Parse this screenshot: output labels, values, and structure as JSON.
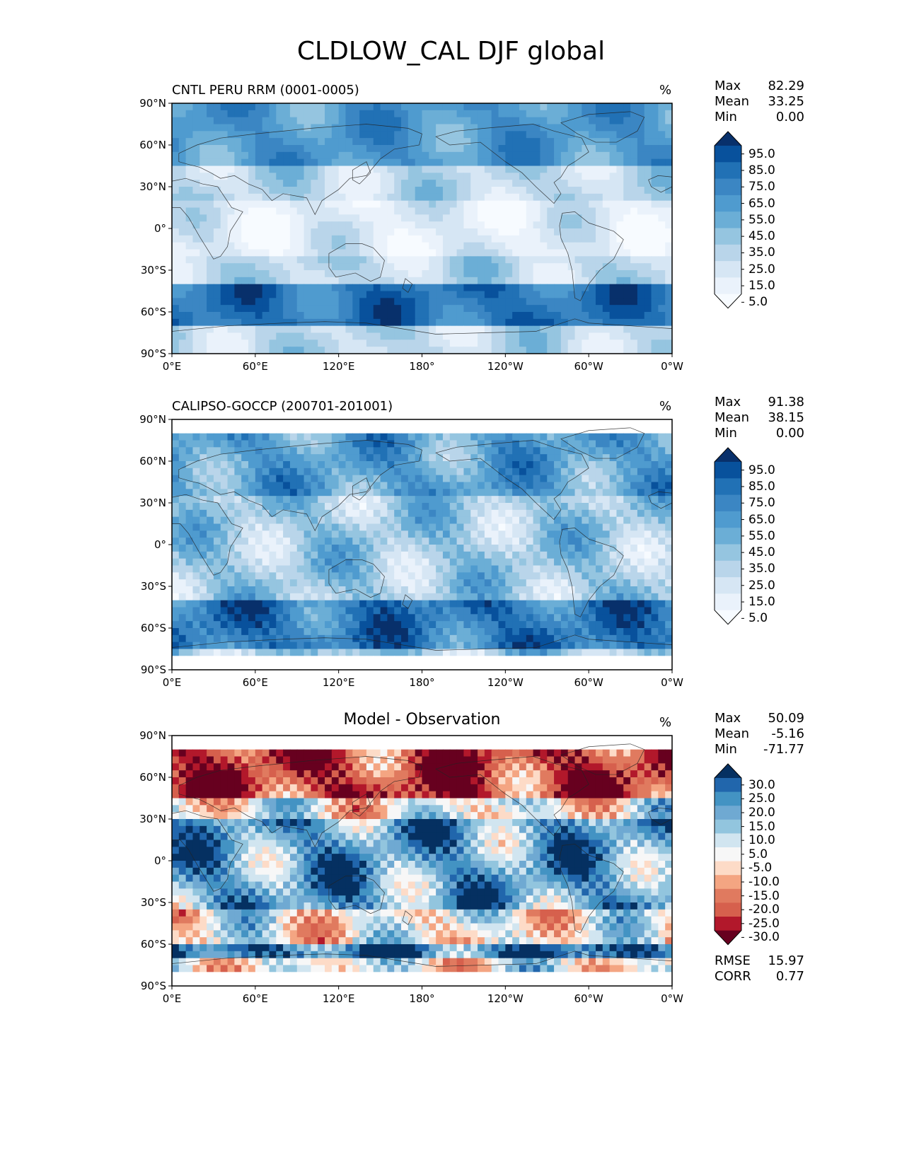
{
  "figure_title": "CLDLOW_CAL DJF global",
  "axes": {
    "lat_ticks": [
      "90°N",
      "60°N",
      "30°N",
      "0°",
      "30°S",
      "60°S",
      "90°S"
    ],
    "lon_ticks": [
      "0°E",
      "60°E",
      "120°E",
      "180°",
      "120°W",
      "60°W",
      "0°W"
    ]
  },
  "panels": [
    {
      "title": "CNTL PERU RRM (0001-0005)",
      "unit": "%",
      "stats": [
        [
          "Max",
          "82.29"
        ],
        [
          "Mean",
          "33.25"
        ],
        [
          "Min",
          "0.00"
        ]
      ],
      "colorbar": {
        "labels": [
          "95.0",
          "85.0",
          "75.0",
          "65.0",
          "55.0",
          "45.0",
          "35.0",
          "25.0",
          "15.0",
          "5.0"
        ],
        "colors": [
          "#08306b",
          "#08519c",
          "#2171b5",
          "#3b86c3",
          "#4f9bcf",
          "#6baed6",
          "#95c5e0",
          "#b9d5ea",
          "#d6e6f4",
          "#eaf2fb",
          "#f7fbff"
        ]
      },
      "extra_stats": []
    },
    {
      "title": "CALIPSO-GOCCP (200701-201001)",
      "unit": "%",
      "stats": [
        [
          "Max",
          "91.38"
        ],
        [
          "Mean",
          "38.15"
        ],
        [
          "Min",
          "0.00"
        ]
      ],
      "colorbar": {
        "labels": [
          "95.0",
          "85.0",
          "75.0",
          "65.0",
          "55.0",
          "45.0",
          "35.0",
          "25.0",
          "15.0",
          "5.0"
        ],
        "colors": [
          "#08306b",
          "#08519c",
          "#2171b5",
          "#3b86c3",
          "#4f9bcf",
          "#6baed6",
          "#95c5e0",
          "#b9d5ea",
          "#d6e6f4",
          "#eaf2fb",
          "#f7fbff"
        ]
      },
      "extra_stats": []
    },
    {
      "title": "Model - Observation",
      "unit": "%",
      "stats": [
        [
          "Max",
          "50.09"
        ],
        [
          "Mean",
          "-5.16"
        ],
        [
          "Min",
          "-71.77"
        ]
      ],
      "colorbar": {
        "labels": [
          "30.0",
          "25.0",
          "20.0",
          "15.0",
          "10.0",
          "5.0",
          "-5.0",
          "-10.0",
          "-15.0",
          "-20.0",
          "-25.0",
          "-30.0"
        ],
        "colors": [
          "#053061",
          "#2166ac",
          "#4393c3",
          "#6fa9d2",
          "#92c5de",
          "#d1e5f0",
          "#f7f7f7",
          "#fddbc7",
          "#f4a582",
          "#e07a5f",
          "#d6604d",
          "#b2182b",
          "#67001f"
        ]
      },
      "extra_stats": [
        [
          "RMSE",
          "15.97"
        ],
        [
          "CORR",
          "0.77"
        ]
      ]
    }
  ]
}
